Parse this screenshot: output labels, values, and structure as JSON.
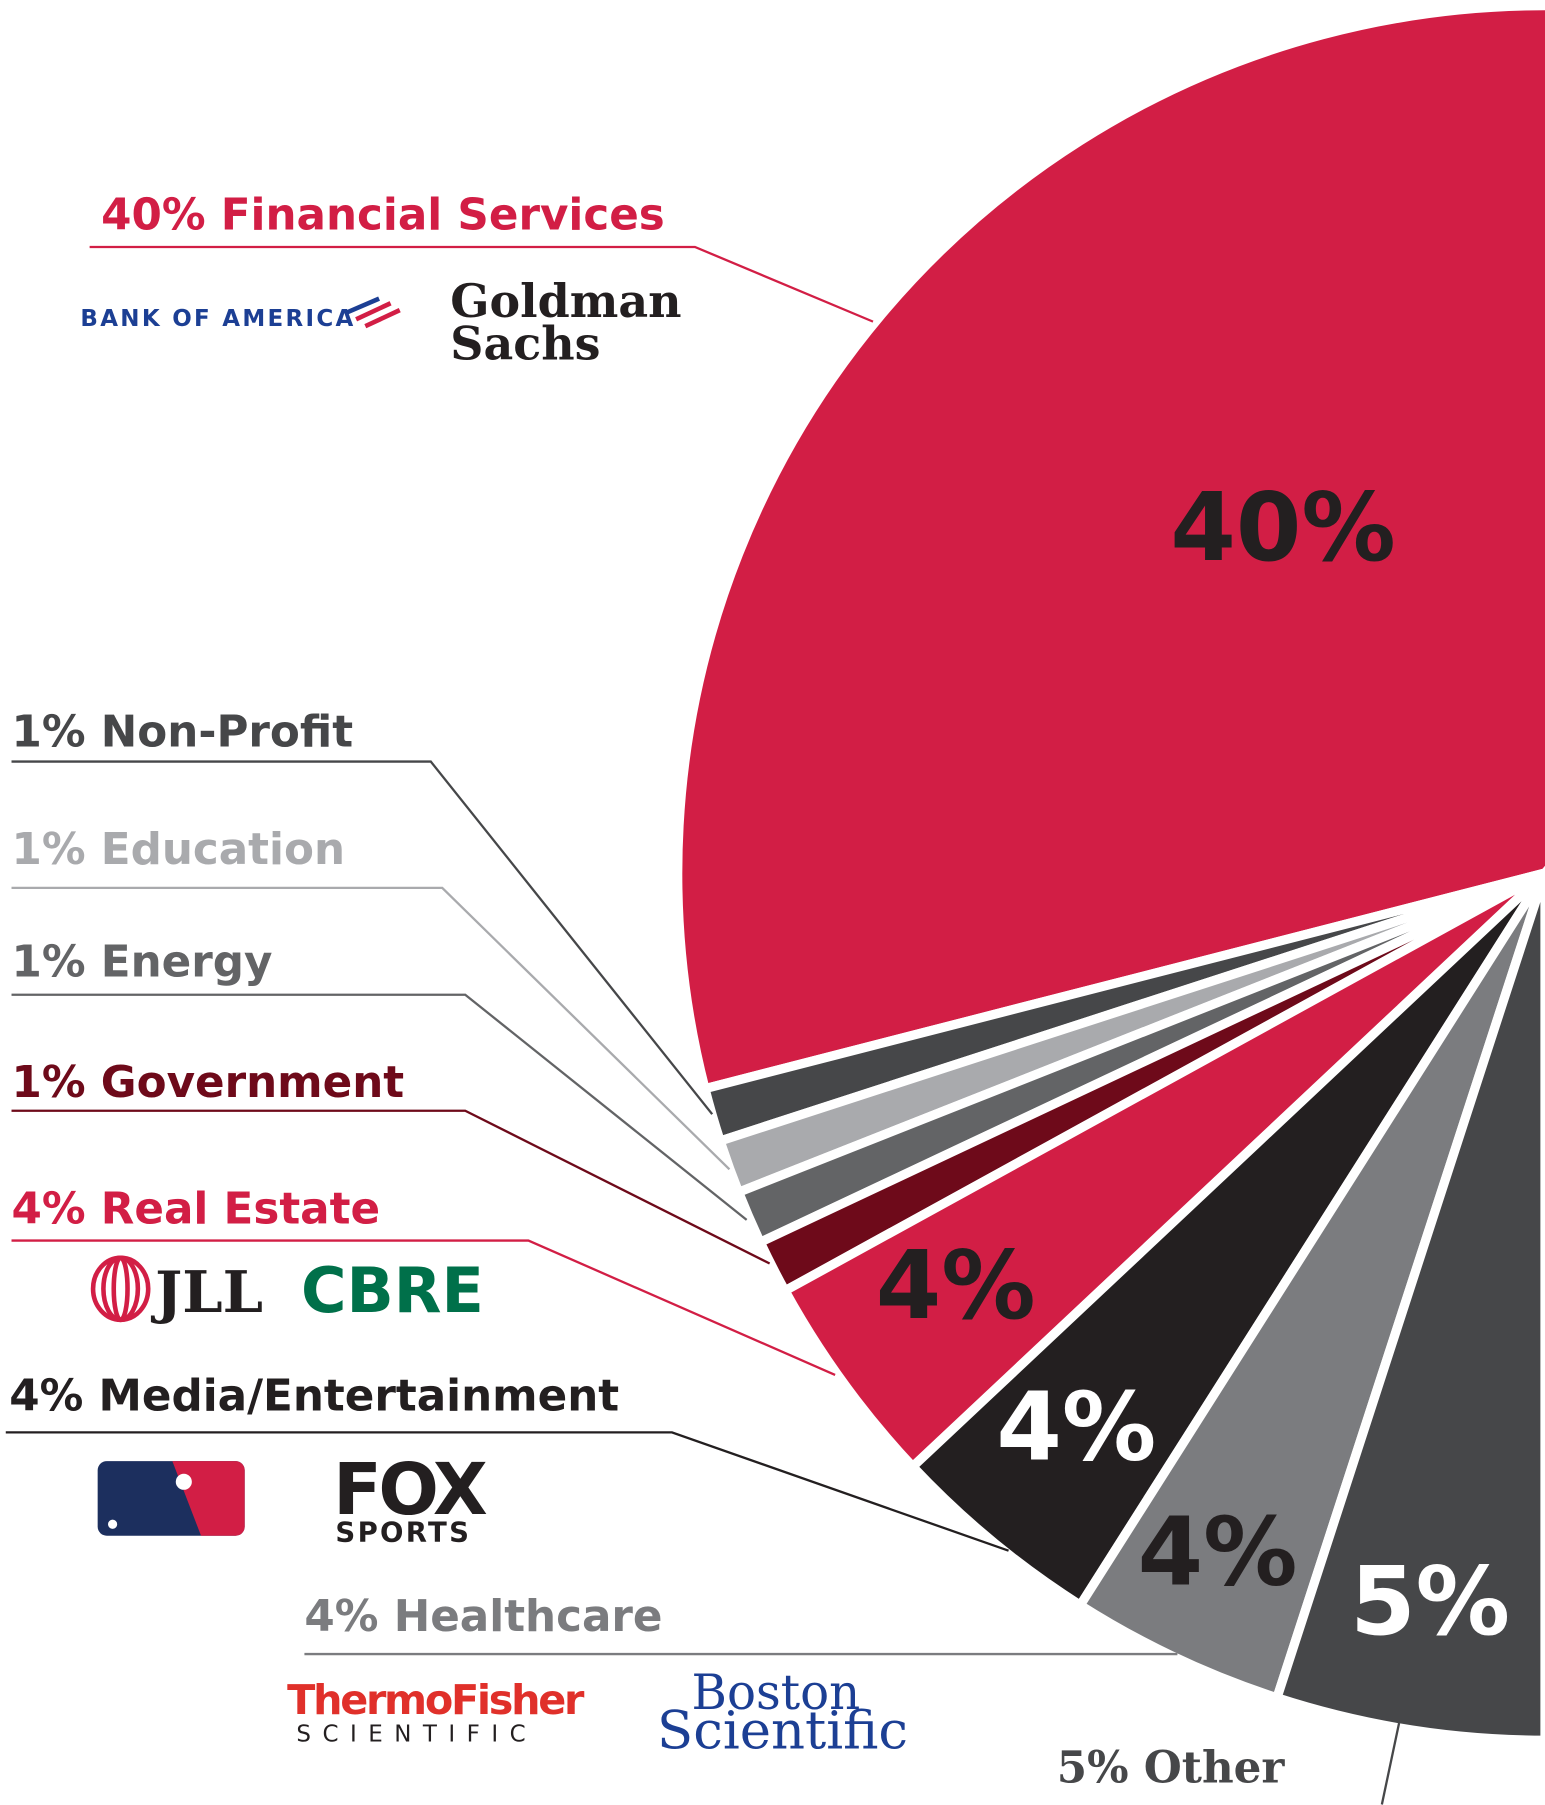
{
  "chart_data": {
    "type": "pie",
    "categories": [
      "Financial Services",
      "Non-Profit",
      "Education",
      "Energy",
      "Government",
      "Real Estate",
      "Media/Entertainment",
      "Healthcare",
      "Other"
    ],
    "values": [
      40,
      1,
      1,
      1,
      1,
      4,
      4,
      4,
      5
    ],
    "value_labels": [
      "40%",
      "1%",
      "1%",
      "1%",
      "1%",
      "4%",
      "4%",
      "4%",
      "5%"
    ],
    "slice_labels": [
      "40%",
      null,
      null,
      null,
      null,
      "4%",
      "4%",
      "4%",
      "5%"
    ],
    "colors": [
      "#d21e45",
      "#464749",
      "#a9aaad",
      "#636466",
      "#6e0a1a",
      "#d21e45",
      "#231f20",
      "#7b7c7f",
      "#464749"
    ],
    "logos": [
      [
        [
          "BANK OF AMERICA"
        ],
        [
          "Goldman",
          "Sachs"
        ]
      ],
      [],
      [],
      [],
      [],
      [
        [
          "JLL"
        ],
        [
          "CBRE"
        ]
      ],
      [
        [
          "FOX",
          "SPORTS"
        ]
      ],
      [
        [
          "ThermoFisher",
          "SCIENTIFIC"
        ],
        [
          "Boston",
          "Scientific"
        ]
      ],
      []
    ]
  }
}
